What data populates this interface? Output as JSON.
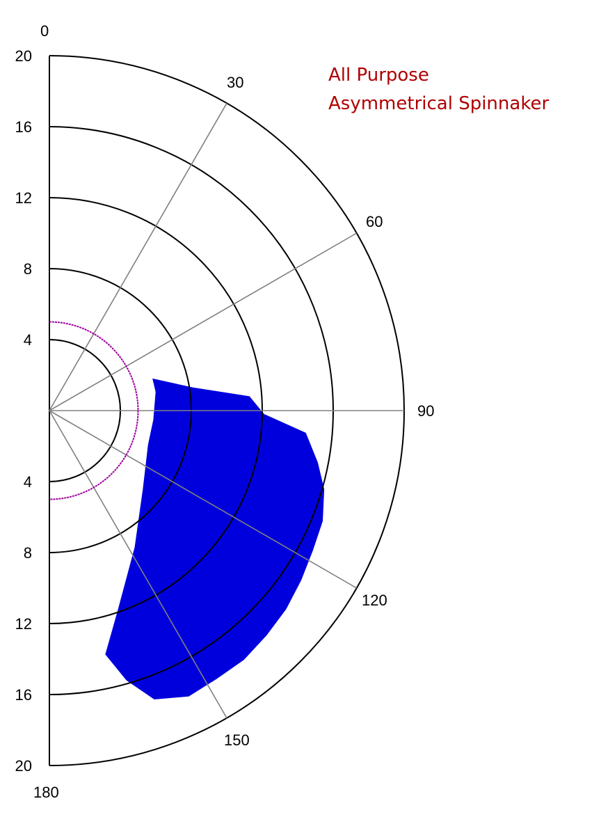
{
  "chart_data": {
    "type": "area",
    "title_lines": [
      "All Purpose",
      "Asymmetrical Spinnaker"
    ],
    "angle_ticks": [
      "0",
      "30",
      "60",
      "90",
      "120",
      "150",
      "180"
    ],
    "radial_ticks": [
      "20",
      "16",
      "12",
      "8",
      "4"
    ],
    "radial_ticks_lower": [
      "4",
      "8",
      "12",
      "16",
      "20"
    ],
    "rlim": [
      0,
      20
    ],
    "theta_range_deg": [
      0,
      180
    ],
    "grid": true,
    "colors": {
      "title": "#b00000",
      "fill": "#0000dd",
      "reference_circle": "#a000a0",
      "rings": "#000000",
      "spokes": "#808080"
    },
    "reference_circle_radius": 5,
    "series": [
      {
        "polygon": [
          {
            "angle": 73,
            "r": 6.1
          },
          {
            "angle": 81,
            "r": 8.2
          },
          {
            "angle": 86,
            "r": 11.3
          },
          {
            "angle": 91,
            "r": 12.1
          },
          {
            "angle": 95,
            "r": 14.5
          },
          {
            "angle": 101,
            "r": 15.4
          },
          {
            "angle": 106,
            "r": 16.1
          },
          {
            "angle": 112,
            "r": 16.6
          },
          {
            "angle": 118,
            "r": 16.8
          },
          {
            "angle": 124,
            "r": 17.1
          },
          {
            "angle": 130,
            "r": 17.4
          },
          {
            "angle": 136,
            "r": 17.6
          },
          {
            "angle": 142,
            "r": 17.8
          },
          {
            "angle": 148,
            "r": 17.8
          },
          {
            "angle": 154,
            "r": 17.9
          },
          {
            "angle": 160,
            "r": 17.3
          },
          {
            "angle": 164,
            "r": 15.8
          },
          {
            "angle": 167,
            "r": 14.1
          },
          {
            "angle": 161,
            "r": 11.9
          },
          {
            "angle": 148,
            "r": 9.1
          },
          {
            "angle": 130,
            "r": 6.9
          },
          {
            "angle": 109,
            "r": 5.9
          },
          {
            "angle": 95,
            "r": 5.9
          },
          {
            "angle": 80,
            "r": 6.1
          }
        ]
      }
    ]
  }
}
